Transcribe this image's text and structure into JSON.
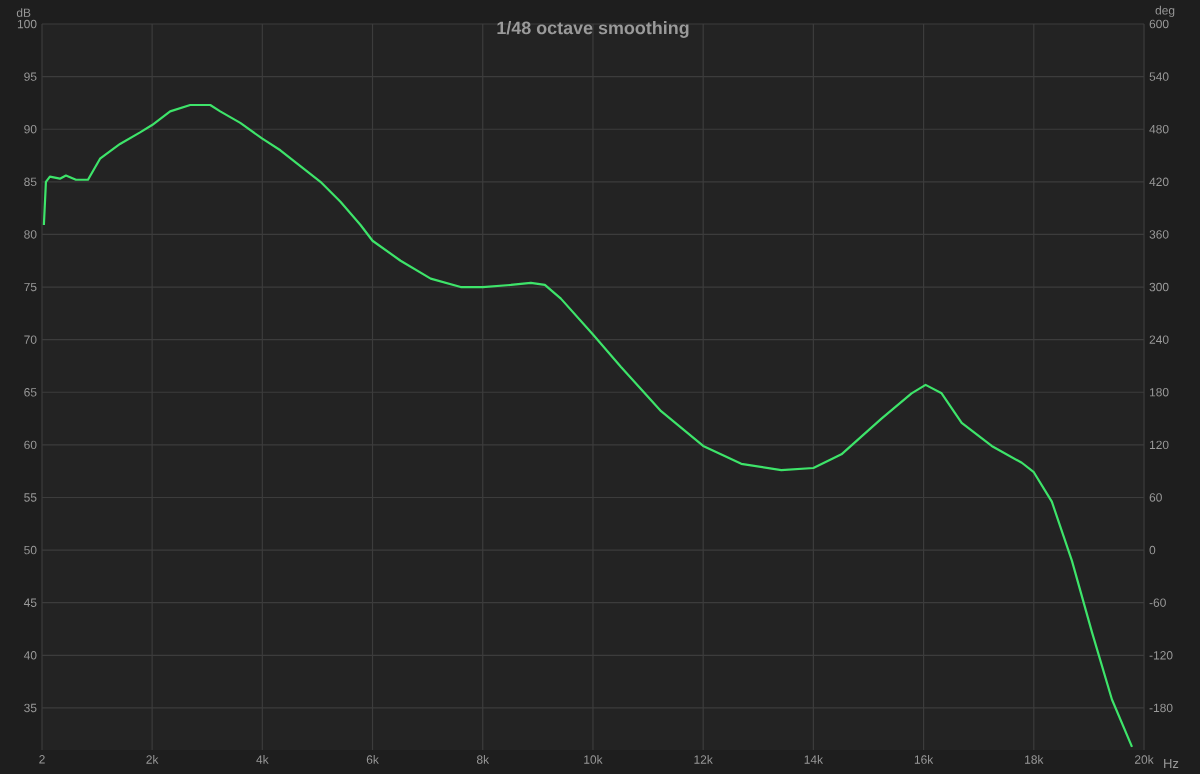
{
  "chart_data": {
    "type": "line",
    "title": "1/48 octave smoothing",
    "xlabel": "Hz",
    "ylabel": "dB",
    "y2label": "deg",
    "xlim": [
      2,
      20000
    ],
    "ylim": [
      31,
      100
    ],
    "y2lim": [
      -228,
      600
    ],
    "xticks": [
      2,
      {
        "value": 2000,
        "label": "2k"
      },
      {
        "value": 4000,
        "label": "4k"
      },
      {
        "value": 6000,
        "label": "6k"
      },
      {
        "value": 8000,
        "label": "8k"
      },
      {
        "value": 10000,
        "label": "10k"
      },
      {
        "value": 12000,
        "label": "12k"
      },
      {
        "value": 14000,
        "label": "14k"
      },
      {
        "value": 16000,
        "label": "16k"
      },
      {
        "value": 18000,
        "label": "18k"
      },
      {
        "value": 20000,
        "label": "20k"
      }
    ],
    "yticks": [
      35,
      40,
      45,
      50,
      55,
      60,
      65,
      70,
      75,
      80,
      85,
      90,
      95,
      100
    ],
    "y2ticks": [
      -180,
      -120,
      -60,
      0,
      60,
      120,
      180,
      240,
      300,
      360,
      420,
      480,
      540,
      600
    ],
    "grid": true,
    "series": [
      {
        "color": "#3ee46a",
        "x": [
          36,
          73,
          145,
          327,
          436,
          618,
          836,
          1055,
          1418,
          1782,
          2000,
          2327,
          2691,
          3055,
          3236,
          3600,
          4000,
          4327,
          4691,
          5055,
          5418,
          5782,
          6000,
          6509,
          7055,
          7600,
          8000,
          8509,
          8873,
          9127,
          9418,
          10000,
          10509,
          11236,
          12000,
          12691,
          13418,
          14000,
          14509,
          15236,
          15782,
          16036,
          16327,
          16691,
          17236,
          17782,
          18000,
          18327,
          18691,
          19055,
          19418,
          19782
        ],
        "values": [
          80.9,
          85.0,
          85.5,
          85.3,
          85.6,
          85.2,
          85.2,
          87.2,
          88.6,
          89.7,
          90.4,
          91.7,
          92.3,
          92.3,
          91.7,
          90.6,
          89.1,
          88.0,
          86.5,
          85.0,
          83.1,
          80.9,
          79.4,
          77.5,
          75.8,
          75.0,
          75.0,
          75.2,
          75.4,
          75.2,
          73.9,
          70.5,
          67.4,
          63.2,
          59.9,
          58.2,
          57.6,
          57.8,
          59.1,
          62.5,
          64.9,
          65.7,
          64.9,
          62.1,
          59.9,
          58.3,
          57.4,
          54.6,
          49.0,
          42.2,
          35.8,
          31.3
        ]
      }
    ]
  }
}
